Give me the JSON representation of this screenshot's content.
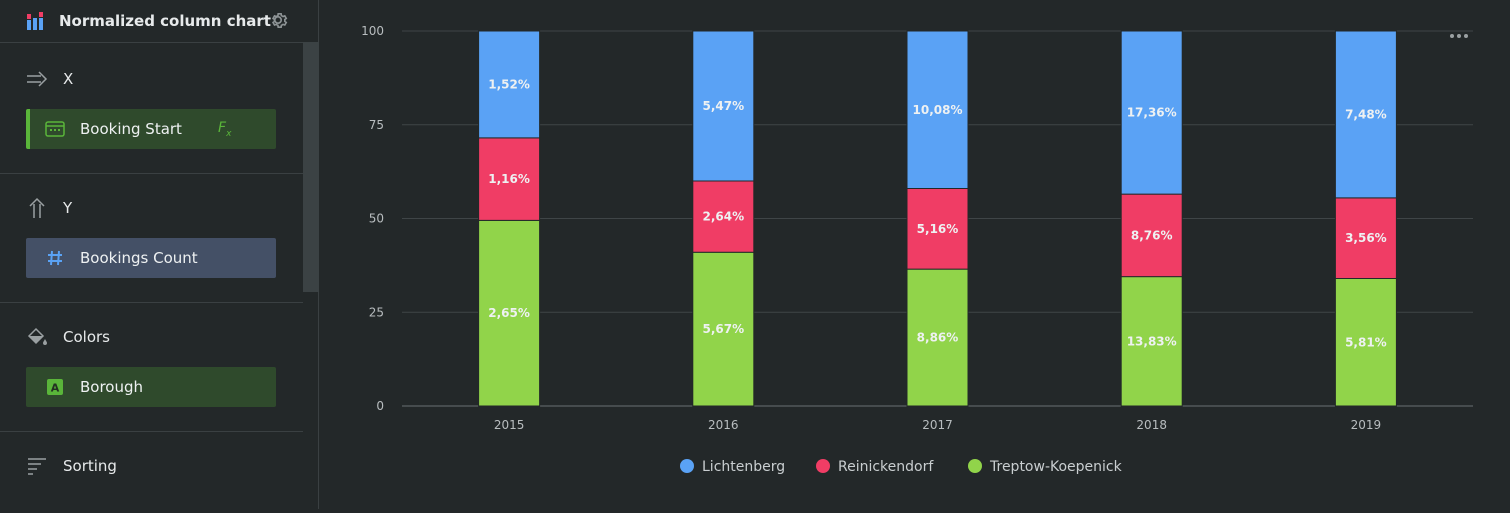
{
  "sidebar": {
    "header": {
      "title": "Normalized column chart"
    },
    "sections": {
      "x": {
        "title": "X",
        "field": "Booking Start",
        "formula_badge": "F"
      },
      "y": {
        "title": "Y",
        "field": "Bookings Count"
      },
      "colors": {
        "title": "Colors",
        "field": "Borough"
      },
      "sorting": {
        "title": "Sorting"
      }
    }
  },
  "theme": {
    "lichtenberg": "#5aa2f5",
    "reinickendorf": "#f03d65",
    "treptow": "#91d44a",
    "grid": "#3f4547",
    "axis_text": "#b8bdbf"
  },
  "chart_data": {
    "type": "bar",
    "stacked": true,
    "normalized": true,
    "categories": [
      "2015",
      "2016",
      "2017",
      "2018",
      "2019"
    ],
    "ylim": [
      0,
      100
    ],
    "yticks": [
      0,
      25,
      50,
      75,
      100
    ],
    "legend_position": "bottom",
    "series": [
      {
        "name": "Treptow-Koepenick",
        "values": [
          49.5,
          41,
          36.5,
          34.5,
          34
        ],
        "labels": [
          "2,65%",
          "5,67%",
          "8,86%",
          "13,83%",
          "5,81%"
        ]
      },
      {
        "name": "Reinickendorf",
        "values": [
          22,
          19,
          21.5,
          22,
          21.5
        ],
        "labels": [
          "1,16%",
          "2,64%",
          "5,16%",
          "8,76%",
          "3,56%"
        ]
      },
      {
        "name": "Lichtenberg",
        "values": [
          28.5,
          40,
          42,
          43.5,
          44.5
        ],
        "labels": [
          "1,52%",
          "5,47%",
          "10,08%",
          "17,36%",
          "7,48%"
        ]
      }
    ]
  }
}
